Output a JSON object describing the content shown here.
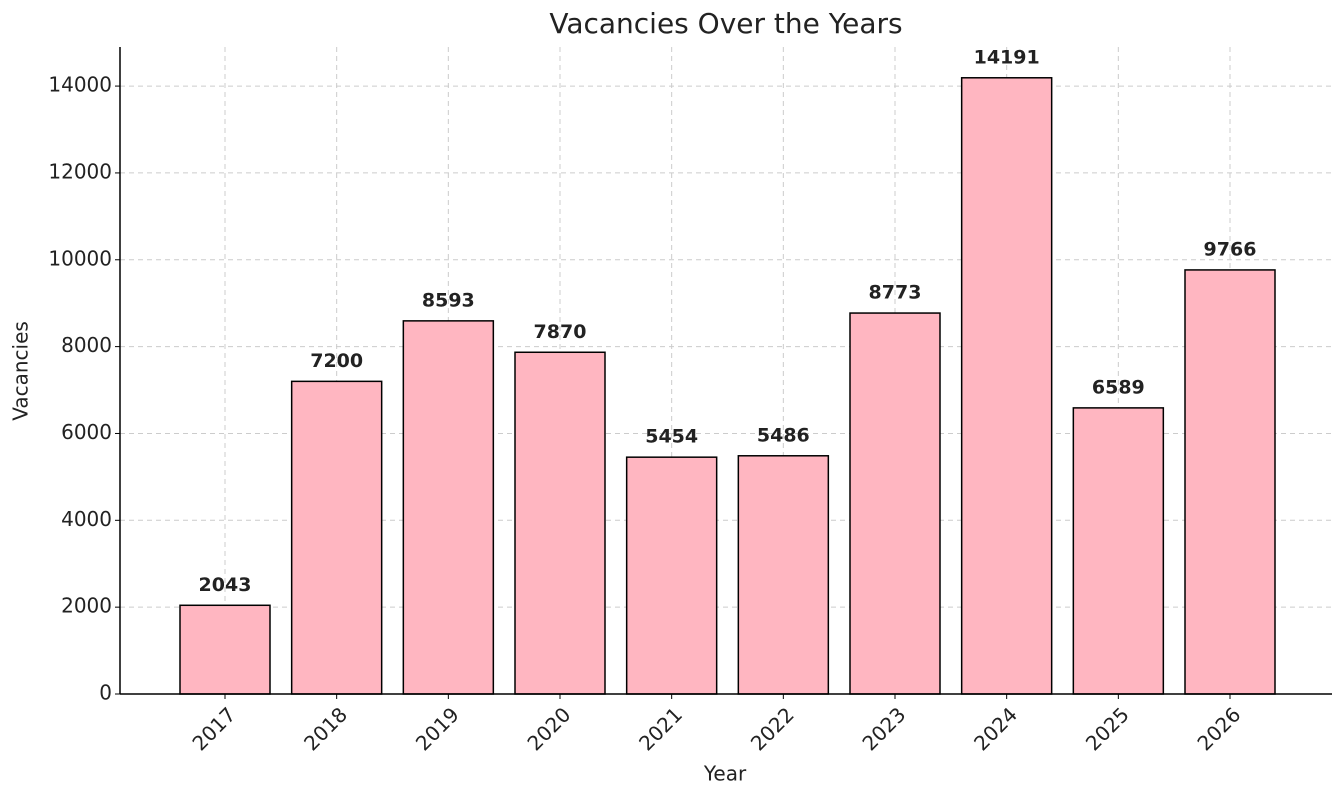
{
  "chart_data": {
    "type": "bar",
    "title": "Vacancies Over the Years",
    "x_label": "Year",
    "y_label": "Vacancies",
    "categories": [
      "2017",
      "2018",
      "2019",
      "2020",
      "2021",
      "2022",
      "2023",
      "2024",
      "2025",
      "2026"
    ],
    "values": [
      2043,
      7200,
      8593,
      7870,
      5454,
      5486,
      8773,
      14191,
      6589,
      9766
    ],
    "color": "#ffb6c1",
    "edge_color": "#000000",
    "ylim": [
      0,
      14900
    ],
    "yticks": [
      0,
      2000,
      4000,
      6000,
      8000,
      10000,
      12000,
      14000
    ],
    "grid": true
  }
}
